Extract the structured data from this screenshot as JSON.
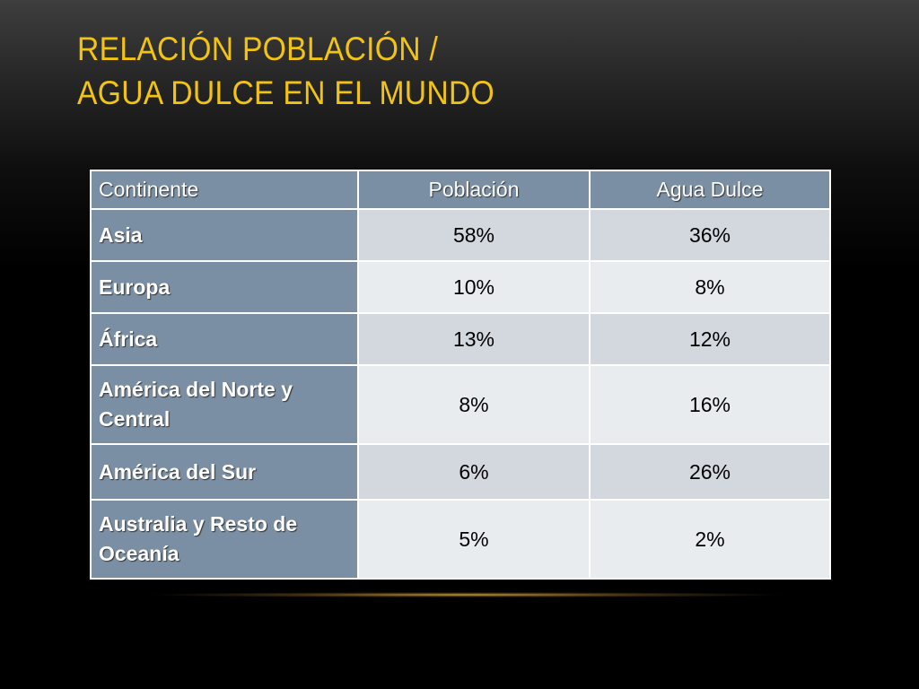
{
  "slide": {
    "title_line1": "RELACIÓN POBLACIÓN /",
    "title_line2": "AGUA DULCE EN EL MUNDO",
    "accent_color": "#f3c312"
  },
  "table": {
    "headers": [
      "Continente",
      "Población",
      "Agua Dulce"
    ],
    "rows": [
      {
        "continente": "Asia",
        "poblacion": "58%",
        "agua_dulce": "36%"
      },
      {
        "continente": "Europa",
        "poblacion": "10%",
        "agua_dulce": "8%"
      },
      {
        "continente": "África",
        "poblacion": "13%",
        "agua_dulce": "12%"
      },
      {
        "continente": "América del Norte y Central",
        "poblacion": "8%",
        "agua_dulce": "16%"
      },
      {
        "continente": "América del Sur",
        "poblacion": "6%",
        "agua_dulce": "26%"
      },
      {
        "continente": "Australia y Resto de Oceanía",
        "poblacion": "5%",
        "agua_dulce": "2%"
      }
    ],
    "header_color": "#7b8fa4",
    "row_colors": [
      "#d3d8de",
      "#e9ecef"
    ]
  }
}
